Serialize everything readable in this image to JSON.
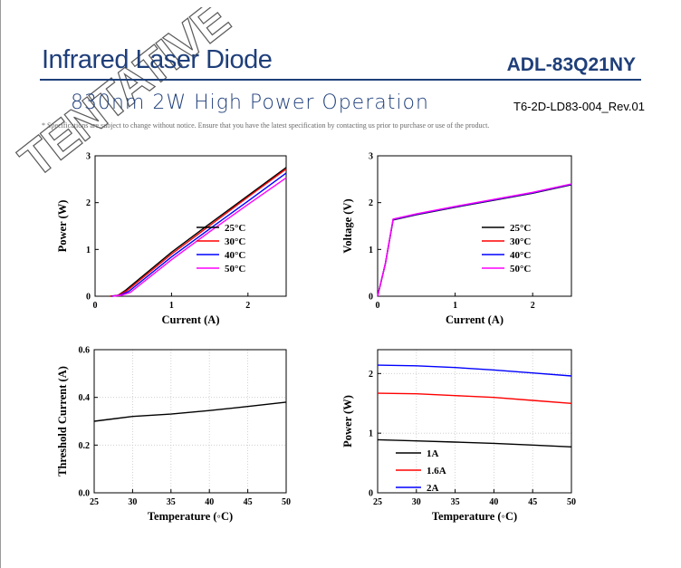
{
  "header": {
    "title": "Infrared Laser Diode",
    "model": "ADL-83Q21NY",
    "subtitle": "830nm 2W High Power Operation",
    "doc_number": "T6-2D-LD83-004_Rev.01",
    "notice": "* Specifications are subject to change without notice. Ensure that you have the latest specification by contacting us prior to purchase or use of the product.",
    "stamp": "TENTATIVE"
  },
  "colors": {
    "brand": "#1f3f7a",
    "s25": "#000000",
    "s30": "#ff0000",
    "s40": "#0000ff",
    "s50": "#ff00ff"
  },
  "chart_data": [
    {
      "type": "line",
      "xlabel": "Current (A)",
      "ylabel": "Power (W)",
      "xlim": [
        0,
        2.5
      ],
      "ylim": [
        0,
        3
      ],
      "xticks": [
        0,
        1,
        2
      ],
      "yticks": [
        0,
        1,
        2,
        3
      ],
      "grid": false,
      "legend": "center-right",
      "series": [
        {
          "name": "25°C",
          "color": "#000000",
          "points": [
            [
              0.2,
              0
            ],
            [
              0.3,
              0.02
            ],
            [
              0.4,
              0.13
            ],
            [
              1.0,
              0.94
            ],
            [
              1.5,
              1.55
            ],
            [
              2.0,
              2.15
            ],
            [
              2.5,
              2.75
            ]
          ]
        },
        {
          "name": "30°C",
          "color": "#ff0000",
          "points": [
            [
              0.2,
              0
            ],
            [
              0.3,
              0.02
            ],
            [
              0.42,
              0.12
            ],
            [
              1.0,
              0.9
            ],
            [
              1.5,
              1.51
            ],
            [
              2.0,
              2.12
            ],
            [
              2.5,
              2.72
            ]
          ]
        },
        {
          "name": "40°C",
          "color": "#0000ff",
          "points": [
            [
              0.22,
              0
            ],
            [
              0.32,
              0.02
            ],
            [
              0.44,
              0.1
            ],
            [
              1.0,
              0.84
            ],
            [
              1.5,
              1.44
            ],
            [
              2.0,
              2.03
            ],
            [
              2.5,
              2.63
            ]
          ]
        },
        {
          "name": "50°C",
          "color": "#ff00ff",
          "points": [
            [
              0.23,
              0
            ],
            [
              0.34,
              0.02
            ],
            [
              0.46,
              0.08
            ],
            [
              1.0,
              0.78
            ],
            [
              1.5,
              1.38
            ],
            [
              2.0,
              1.96
            ],
            [
              2.5,
              2.53
            ]
          ]
        }
      ]
    },
    {
      "type": "line",
      "xlabel": "Current (A)",
      "ylabel": "Voltage (V)",
      "xlim": [
        0,
        2.5
      ],
      "ylim": [
        0,
        3
      ],
      "xticks": [
        0,
        1,
        2
      ],
      "yticks": [
        0,
        1,
        2,
        3
      ],
      "grid": false,
      "legend": "center-right",
      "series": [
        {
          "name": "25°C",
          "color": "#000000",
          "points": [
            [
              0,
              0
            ],
            [
              0.1,
              0.7
            ],
            [
              0.2,
              1.63
            ],
            [
              0.5,
              1.74
            ],
            [
              1.0,
              1.9
            ],
            [
              1.5,
              2.05
            ],
            [
              2.0,
              2.2
            ],
            [
              2.5,
              2.38
            ]
          ]
        },
        {
          "name": "30°C",
          "color": "#ff0000",
          "points": [
            [
              0,
              0
            ],
            [
              0.1,
              0.7
            ],
            [
              0.2,
              1.64
            ],
            [
              0.5,
              1.75
            ],
            [
              1.0,
              1.91
            ],
            [
              1.5,
              2.06
            ],
            [
              2.0,
              2.21
            ],
            [
              2.5,
              2.39
            ]
          ]
        },
        {
          "name": "40°C",
          "color": "#0000ff",
          "points": [
            [
              0,
              0
            ],
            [
              0.1,
              0.7
            ],
            [
              0.2,
              1.64
            ],
            [
              0.5,
              1.75
            ],
            [
              1.0,
              1.91
            ],
            [
              1.5,
              2.06
            ],
            [
              2.0,
              2.21
            ],
            [
              2.5,
              2.39
            ]
          ]
        },
        {
          "name": "50°C",
          "color": "#ff00ff",
          "points": [
            [
              0,
              0
            ],
            [
              0.1,
              0.7
            ],
            [
              0.2,
              1.65
            ],
            [
              0.5,
              1.76
            ],
            [
              1.0,
              1.92
            ],
            [
              1.5,
              2.07
            ],
            [
              2.0,
              2.22
            ],
            [
              2.5,
              2.4
            ]
          ]
        }
      ]
    },
    {
      "type": "line",
      "xlabel": "Temperature (◦C)",
      "ylabel": "Threshold Current (A)",
      "xlim": [
        25,
        50
      ],
      "ylim": [
        0,
        0.6
      ],
      "xticks": [
        25,
        30,
        35,
        40,
        45,
        50
      ],
      "yticks": [
        0.0,
        0.2,
        0.4,
        0.6
      ],
      "yticklabels": [
        "0.0",
        "0.2",
        "0.4",
        "0.6"
      ],
      "grid": true,
      "legend": "none",
      "series": [
        {
          "name": "",
          "color": "#000000",
          "points": [
            [
              25,
              0.3
            ],
            [
              30,
              0.32
            ],
            [
              35,
              0.33
            ],
            [
              40,
              0.345
            ],
            [
              45,
              0.362
            ],
            [
              50,
              0.38
            ]
          ]
        }
      ]
    },
    {
      "type": "line",
      "xlabel": "Temperature (◦C)",
      "ylabel": "Power (W)",
      "xlim": [
        25,
        50
      ],
      "ylim": [
        0,
        2.4
      ],
      "xticks": [
        25,
        30,
        35,
        40,
        45,
        50
      ],
      "yticks": [
        0,
        1,
        2
      ],
      "grid": true,
      "legend": "bottom-center",
      "series": [
        {
          "name": "1A",
          "color": "#000000",
          "points": [
            [
              25,
              0.89
            ],
            [
              30,
              0.87
            ],
            [
              35,
              0.85
            ],
            [
              40,
              0.83
            ],
            [
              45,
              0.8
            ],
            [
              50,
              0.77
            ]
          ]
        },
        {
          "name": "1.6A",
          "color": "#ff0000",
          "points": [
            [
              25,
              1.67
            ],
            [
              30,
              1.66
            ],
            [
              35,
              1.63
            ],
            [
              40,
              1.6
            ],
            [
              45,
              1.55
            ],
            [
              50,
              1.5
            ]
          ]
        },
        {
          "name": "2A",
          "color": "#0000ff",
          "points": [
            [
              25,
              2.14
            ],
            [
              30,
              2.13
            ],
            [
              35,
              2.1
            ],
            [
              40,
              2.06
            ],
            [
              45,
              2.01
            ],
            [
              50,
              1.96
            ]
          ]
        }
      ]
    }
  ]
}
